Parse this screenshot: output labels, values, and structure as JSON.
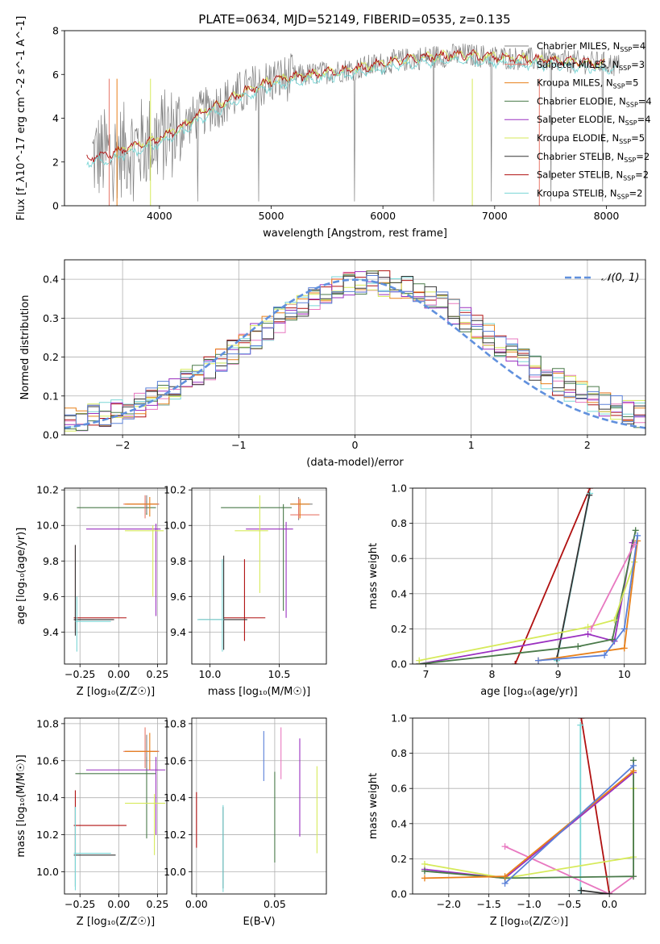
{
  "title": "PLATE=0634, MJD=52149, FIBERID=0535, z=0.135",
  "colors": {
    "Chabrier MILES": "#808080",
    "Salpeter MILES": "#e8786a",
    "Kroupa MILES": "#e8801a",
    "Chabrier ELODIE": "#4a7a4a",
    "Salpeter ELODIE": "#9a30c0",
    "Kroupa ELODIE": "#d6ea5a",
    "Chabrier STELIB": "#333333",
    "Salpeter STELIB": "#b01010",
    "Kroupa STELIB": "#7ad6d6",
    "normal": "#6090dd",
    "pink": "#e878c0",
    "blue": "#5a80d8",
    "green": "#3a9a3a"
  },
  "chart_data": [
    {
      "id": "spectrum",
      "type": "line",
      "xlabel": "wavelength [Angstrom, rest frame]",
      "ylabel": "Flux [f_λ10^-17 erg cm^-2 s^-1 A^-1]",
      "xlim": [
        3150,
        8350
      ],
      "ylim": [
        0,
        8
      ],
      "xticks": [
        4000,
        5000,
        6000,
        7000,
        8000
      ],
      "yticks": [
        0,
        2,
        4,
        6,
        8
      ],
      "legend": [
        {
          "name": "Chabrier MILES",
          "n": "4"
        },
        {
          "name": "Salpeter MILES",
          "n": "3"
        },
        {
          "name": "Kroupa MILES",
          "n": "5"
        },
        {
          "name": "Chabrier ELODIE",
          "n": "4"
        },
        {
          "name": "Salpeter ELODIE",
          "n": "4"
        },
        {
          "name": "Kroupa ELODIE",
          "n": "5"
        },
        {
          "name": "Chabrier STELIB",
          "n": "2"
        },
        {
          "name": "Salpeter STELIB",
          "n": "2"
        },
        {
          "name": "Kroupa STELIB",
          "n": "2"
        }
      ],
      "legend_loc": "upper right",
      "continuum": [
        [
          3350,
          2.2
        ],
        [
          3600,
          2.4
        ],
        [
          3700,
          2.6
        ],
        [
          3900,
          2.9
        ],
        [
          4000,
          3.1
        ],
        [
          4200,
          3.6
        ],
        [
          4400,
          4.3
        ],
        [
          4600,
          4.8
        ],
        [
          4800,
          5.3
        ],
        [
          5000,
          5.7
        ],
        [
          5200,
          5.9
        ],
        [
          5500,
          6.1
        ],
        [
          5800,
          6.3
        ],
        [
          6100,
          6.6
        ],
        [
          6400,
          6.8
        ],
        [
          6700,
          6.9
        ],
        [
          7000,
          6.8
        ],
        [
          7300,
          6.7
        ],
        [
          7600,
          6.6
        ],
        [
          8000,
          6.5
        ],
        [
          8100,
          6.4
        ]
      ]
    },
    {
      "id": "residuals",
      "type": "line",
      "xlabel": "(data-model)/error",
      "ylabel": "Normed distribution",
      "xlim": [
        -2.5,
        2.5
      ],
      "ylim": [
        0,
        0.45
      ],
      "xticks": [
        -2,
        -1,
        0,
        1,
        2
      ],
      "yticks": [
        0.0,
        0.1,
        0.2,
        0.3,
        0.4
      ],
      "legend": "𝒩(0, 1)",
      "normal": {
        "mu": 0.0,
        "sigma": 1.0
      }
    },
    {
      "id": "Z-age",
      "type": "scatter",
      "xlabel": "Z [log₁₀(Z/Z☉)]",
      "ylabel": "age  [log₁₀(age/yr)]",
      "xlim": [
        -0.35,
        0.31
      ],
      "ylim": [
        9.22,
        10.21
      ],
      "xticks": [
        -0.25,
        0.0,
        0.25
      ],
      "yticks": [
        9.4,
        9.6,
        9.8,
        10.0,
        10.2
      ],
      "points": [
        {
          "c": "Salpeter STELIB",
          "x": -0.28,
          "xe": [
            -0.29,
            0.05
          ],
          "y": 9.48,
          "ye": [
            9.4,
            9.89
          ]
        },
        {
          "c": "Chabrier STELIB",
          "x": -0.28,
          "xe": [
            -0.29,
            -0.03
          ],
          "y": 9.47,
          "ye": [
            9.38,
            9.89
          ]
        },
        {
          "c": "Kroupa STELIB",
          "x": -0.27,
          "xe": [
            -0.28,
            -0.05
          ],
          "y": 9.46,
          "ye": [
            9.29,
            9.6
          ]
        },
        {
          "c": "Chabrier ELODIE",
          "x": 0.18,
          "xe": [
            -0.27,
            0.24
          ],
          "y": 10.1,
          "ye": [
            10.06,
            10.14
          ]
        },
        {
          "c": "Salpeter ELODIE",
          "x": 0.24,
          "xe": [
            -0.21,
            0.27
          ],
          "y": 9.98,
          "ye": [
            9.49,
            10.01
          ]
        },
        {
          "c": "Kroupa ELODIE",
          "x": 0.22,
          "xe": [
            0.04,
            0.29
          ],
          "y": 9.97,
          "ye": [
            9.6,
            10.0
          ]
        },
        {
          "c": "Chabrier MILES",
          "x": 0.18,
          "xe": [
            0.05,
            0.26
          ],
          "y": 10.12,
          "ye": [
            10.07,
            10.17
          ]
        },
        {
          "c": "Salpeter MILES",
          "x": 0.17,
          "xe": [
            0.03,
            0.26
          ],
          "y": 10.12,
          "ye": [
            10.04,
            10.17
          ]
        },
        {
          "c": "Kroupa MILES",
          "x": 0.2,
          "xe": [
            0.04,
            0.25
          ],
          "y": 10.12,
          "ye": [
            10.05,
            10.16
          ]
        }
      ]
    },
    {
      "id": "mass-age",
      "type": "scatter",
      "xlabel": "mass [log₁₀(M/M☉)]",
      "ylabel": "",
      "xlim": [
        9.87,
        10.84
      ],
      "ylim": [
        9.22,
        10.21
      ],
      "xticks": [
        10.0,
        10.5
      ],
      "yticks": [
        9.4,
        9.6,
        9.8,
        10.0,
        10.2
      ],
      "points": [
        {
          "c": "Salpeter STELIB",
          "x": 10.25,
          "xe": [
            10.1,
            10.4
          ],
          "y": 9.48,
          "ye": [
            9.35,
            9.81
          ]
        },
        {
          "c": "Chabrier STELIB",
          "x": 10.1,
          "xe": [
            9.92,
            10.27
          ],
          "y": 9.47,
          "ye": [
            9.3,
            9.83
          ]
        },
        {
          "c": "Kroupa STELIB",
          "x": 10.09,
          "xe": [
            9.91,
            10.1
          ],
          "y": 9.47,
          "ye": [
            9.29,
            9.81
          ]
        },
        {
          "c": "Chabrier ELODIE",
          "x": 10.53,
          "xe": [
            10.08,
            10.59
          ],
          "y": 10.1,
          "ye": [
            9.52,
            10.12
          ]
        },
        {
          "c": "Salpeter ELODIE",
          "x": 10.55,
          "xe": [
            10.26,
            10.6
          ],
          "y": 9.98,
          "ye": [
            9.48,
            10.02
          ]
        },
        {
          "c": "Kroupa ELODIE",
          "x": 10.36,
          "xe": [
            10.18,
            10.42
          ],
          "y": 9.97,
          "ye": [
            9.62,
            10.17
          ]
        },
        {
          "c": "Chabrier MILES",
          "x": 10.64,
          "xe": [
            10.58,
            10.74
          ],
          "y": 10.12,
          "ye": [
            10.03,
            10.16
          ]
        },
        {
          "c": "Salpeter MILES",
          "x": 10.64,
          "xe": [
            10.58,
            10.79
          ],
          "y": 10.06,
          "ye": [
            10.04,
            10.15
          ]
        },
        {
          "c": "Kroupa MILES",
          "x": 10.65,
          "xe": [
            10.58,
            10.72
          ],
          "y": 10.12,
          "ye": [
            10.04,
            10.15
          ]
        }
      ]
    },
    {
      "id": "age-weight",
      "type": "line",
      "xlabel": "age  [log₁₀(age/yr)]",
      "ylabel": "mass weight",
      "xlim": [
        6.8,
        10.32
      ],
      "ylim": [
        0,
        1
      ],
      "xticks": [
        7,
        8,
        9,
        10
      ],
      "yticks": [
        0.0,
        0.2,
        0.4,
        0.6,
        0.8,
        1.0
      ],
      "series": [
        {
          "c": "Salpeter STELIB",
          "x": [
            8.35,
            9.48
          ],
          "y": [
            0.0,
            1.0
          ]
        },
        {
          "c": "Kroupa STELIB",
          "x": [
            8.98,
            9.48
          ],
          "y": [
            0.02,
            0.97
          ]
        },
        {
          "c": "Chabrier STELIB",
          "x": [
            8.98,
            9.47
          ],
          "y": [
            0.03,
            0.96
          ]
        },
        {
          "c": "Salpeter ELODIE",
          "x": [
            6.9,
            9.45,
            9.85,
            10.12
          ],
          "y": [
            0.0,
            0.17,
            0.13,
            0.69
          ]
        },
        {
          "c": "Chabrier ELODIE",
          "x": [
            6.9,
            9.3,
            9.82,
            10.17
          ],
          "y": [
            0.0,
            0.1,
            0.14,
            0.76
          ]
        },
        {
          "c": "Kroupa ELODIE",
          "x": [
            6.9,
            9.45,
            9.85,
            10.15
          ],
          "y": [
            0.02,
            0.21,
            0.25,
            0.58
          ]
        },
        {
          "c": "Kroupa MILES",
          "x": [
            8.7,
            10.0,
            10.2
          ],
          "y": [
            0.02,
            0.09,
            0.7
          ]
        },
        {
          "c": "blue",
          "x": [
            8.7,
            9.7,
            10.0,
            10.2
          ],
          "y": [
            0.02,
            0.05,
            0.2,
            0.73
          ]
        },
        {
          "c": "pink",
          "x": [
            9.5,
            10.15
          ],
          "y": [
            0.2,
            0.68
          ]
        }
      ]
    },
    {
      "id": "Z-mass",
      "type": "scatter",
      "xlabel": "Z [log₁₀(Z/Z☉)]",
      "ylabel": "mass [log₁₀(M/M☉)]",
      "xlim": [
        -0.35,
        0.31
      ],
      "ylim": [
        9.88,
        10.83
      ],
      "xticks": [
        -0.25,
        0.0,
        0.25
      ],
      "yticks": [
        10.0,
        10.2,
        10.4,
        10.6,
        10.8
      ],
      "points": [
        {
          "c": "Salpeter STELIB",
          "x": -0.28,
          "xe": [
            -0.29,
            0.05
          ],
          "y": 10.25,
          "ye": [
            10.1,
            10.44
          ]
        },
        {
          "c": "Chabrier STELIB",
          "x": -0.28,
          "xe": [
            -0.29,
            -0.02
          ],
          "y": 10.09,
          "ye": [
            9.92,
            10.35
          ]
        },
        {
          "c": "Kroupa STELIB",
          "x": -0.28,
          "xe": [
            -0.29,
            -0.05
          ],
          "y": 10.1,
          "ye": [
            9.9,
            10.35
          ]
        },
        {
          "c": "Chabrier ELODIE",
          "x": 0.18,
          "xe": [
            -0.28,
            0.24
          ],
          "y": 10.53,
          "ye": [
            10.18,
            10.62
          ]
        },
        {
          "c": "Salpeter ELODIE",
          "x": 0.24,
          "xe": [
            -0.21,
            0.3
          ],
          "y": 10.55,
          "ye": [
            10.2,
            10.62
          ]
        },
        {
          "c": "Kroupa ELODIE",
          "x": 0.23,
          "xe": [
            0.04,
            0.3
          ],
          "y": 10.37,
          "ye": [
            10.09,
            10.42
          ]
        },
        {
          "c": "Chabrier MILES",
          "x": 0.18,
          "xe": [
            0.04,
            0.26
          ],
          "y": 10.65,
          "ye": [
            10.56,
            10.74
          ]
        },
        {
          "c": "Salpeter MILES",
          "x": 0.17,
          "xe": [
            0.03,
            0.26
          ],
          "y": 10.65,
          "ye": [
            10.56,
            10.78
          ]
        },
        {
          "c": "Kroupa MILES",
          "x": 0.2,
          "xe": [
            0.04,
            0.25
          ],
          "y": 10.65,
          "ye": [
            10.55,
            10.75
          ]
        }
      ]
    },
    {
      "id": "EBV-mass",
      "type": "scatter",
      "xlabel": "E(B-V)",
      "ylabel": "",
      "xlim": [
        -0.003,
        0.083
      ],
      "ylim": [
        9.88,
        10.83
      ],
      "xticks": [
        0.0,
        0.05
      ],
      "yticks": [
        10.0,
        10.2,
        10.4,
        10.6,
        10.8
      ],
      "points": [
        {
          "c": "Salpeter STELIB",
          "x": 0.0,
          "y": 10.25,
          "ye": [
            10.13,
            10.43
          ]
        },
        {
          "c": "Chabrier STELIB",
          "x": 0.017,
          "y": 10.09,
          "ye": [
            9.91,
            10.35
          ]
        },
        {
          "c": "Kroupa STELIB",
          "x": 0.017,
          "y": 10.1,
          "ye": [
            9.89,
            10.36
          ]
        },
        {
          "c": "blue",
          "x": 0.043,
          "y": 10.63,
          "ye": [
            10.49,
            10.76
          ]
        },
        {
          "c": "Chabrier ELODIE",
          "x": 0.05,
          "y": 10.37,
          "ye": [
            10.05,
            10.54
          ]
        },
        {
          "c": "pink",
          "x": 0.054,
          "y": 10.62,
          "ye": [
            10.5,
            10.78
          ]
        },
        {
          "c": "Salpeter ELODIE",
          "x": 0.066,
          "y": 10.52,
          "ye": [
            10.19,
            10.72
          ]
        },
        {
          "c": "Kroupa ELODIE",
          "x": 0.077,
          "y": 10.4,
          "ye": [
            10.1,
            10.57
          ]
        }
      ]
    },
    {
      "id": "Z-weight",
      "type": "line",
      "xlabel": "Z [log₁₀(Z/Z☉)]",
      "ylabel": "mass weight",
      "xlim": [
        -2.45,
        0.45
      ],
      "ylim": [
        0,
        1
      ],
      "xticks": [
        -2.0,
        -1.5,
        -1.0,
        -0.5,
        0.0
      ],
      "yticks": [
        0.0,
        0.2,
        0.4,
        0.6,
        0.8,
        1.0
      ],
      "series": [
        {
          "c": "Salpeter STELIB",
          "x": [
            -0.35,
            0.0
          ],
          "y": [
            1.0,
            0.0
          ]
        },
        {
          "c": "Kroupa STELIB",
          "x": [
            -0.36,
            -0.36
          ],
          "y": [
            0.96,
            0.02
          ]
        },
        {
          "c": "pink",
          "x": [
            -1.3,
            0.0,
            0.3
          ],
          "y": [
            0.27,
            0.0,
            0.1
          ]
        },
        {
          "c": "Salpeter ELODIE",
          "x": [
            -2.3,
            -1.3,
            0.3
          ],
          "y": [
            0.14,
            0.09,
            0.69
          ]
        },
        {
          "c": "Kroupa ELODIE",
          "x": [
            -2.3,
            -1.3,
            0.3,
            0.3
          ],
          "y": [
            0.17,
            0.09,
            0.21,
            0.6
          ]
        },
        {
          "c": "Chabrier ELODIE",
          "x": [
            -2.3,
            -1.3,
            0.3,
            0.3
          ],
          "y": [
            0.13,
            0.09,
            0.1,
            0.76
          ]
        },
        {
          "c": "Kroupa MILES",
          "x": [
            -2.3,
            -1.3,
            0.3
          ],
          "y": [
            0.09,
            0.1,
            0.7
          ]
        },
        {
          "c": "blue",
          "x": [
            -1.3,
            0.3
          ],
          "y": [
            0.06,
            0.73
          ]
        },
        {
          "c": "Chabrier STELIB",
          "x": [
            -0.35,
            0.0
          ],
          "y": [
            0.02,
            0.0
          ]
        }
      ]
    }
  ]
}
